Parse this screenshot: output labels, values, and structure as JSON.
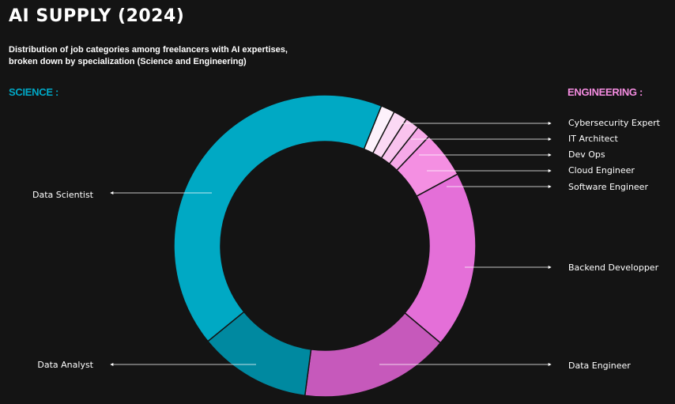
{
  "header": {
    "title": "AI SUPPLY (2024)",
    "subtitle": "Distribution of job categories among freelancers with AI expertises, broken down by specialization (Science and Engineering)"
  },
  "groups": {
    "science_label": "SCIENCE :",
    "engineering_label": "ENGINEERING :"
  },
  "colors": {
    "background": "#141414",
    "science": "#00a8c6",
    "engineering": "#f48ce0"
  },
  "chart_data": {
    "type": "pie",
    "title": "AI SUPPLY (2024)",
    "donut": true,
    "legend": "none",
    "slices": [
      {
        "label": "Cybersecurity  Expert",
        "group": "engineering",
        "value": 1.5,
        "color": "#fdf1fb"
      },
      {
        "label": "IT Architect",
        "group": "engineering",
        "value": 1.5,
        "color": "#fbd9f4"
      },
      {
        "label": "Dev Ops",
        "group": "engineering",
        "value": 1.5,
        "color": "#f9c3ee"
      },
      {
        "label": "Cloud Engineer",
        "group": "engineering",
        "value": 1.5,
        "color": "#f6a9e8"
      },
      {
        "label": "Software Engineer",
        "group": "engineering",
        "value": 5,
        "color": "#f48fe2"
      },
      {
        "label": "Backend Developper",
        "group": "engineering",
        "value": 19,
        "color": "#e46fd8"
      },
      {
        "label": "Data Engineer",
        "group": "engineering",
        "value": 16,
        "color": "#c659bb"
      },
      {
        "label": "Data Analyst",
        "group": "science",
        "value": 12,
        "color": "#0089a0"
      },
      {
        "label": "Data Scientist",
        "group": "science",
        "value": 42,
        "color": "#00a9c4"
      }
    ]
  }
}
